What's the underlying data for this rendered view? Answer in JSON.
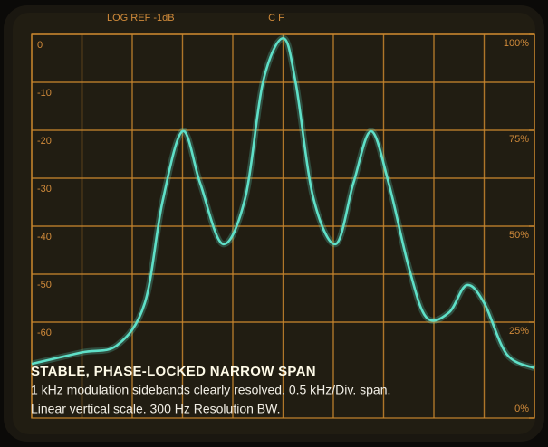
{
  "chart_data": {
    "type": "line",
    "top_labels": {
      "left": "LOG REF -1dB",
      "center": "C F"
    },
    "xlim": [
      0,
      10
    ],
    "xticks": [
      0,
      1,
      2,
      3,
      4,
      5,
      6,
      7,
      8,
      9,
      10
    ],
    "ylim": [
      -80,
      0
    ],
    "yticks": [
      0,
      -10,
      -20,
      -30,
      -40,
      -50,
      -60
    ],
    "y2lim": [
      0,
      100
    ],
    "y2ticks": [
      {
        "value": 100,
        "label": "100%"
      },
      {
        "value": 75,
        "label": "75%"
      },
      {
        "value": 50,
        "label": "50%"
      },
      {
        "value": 25,
        "label": "25%"
      },
      {
        "value": 0,
        "label": "0%"
      }
    ],
    "grid": true,
    "grid_color": "#c8862e",
    "series": [
      {
        "color": "#5fe0c8",
        "x": [
          0,
          1,
          1.7,
          2.25,
          2.6,
          3,
          3.35,
          3.8,
          4.25,
          4.6,
          5,
          5.25,
          5.6,
          6.05,
          6.4,
          6.75,
          7.1,
          7.5,
          7.85,
          8.3,
          8.65,
          9,
          9.45,
          10
        ],
        "values": [
          -68.7,
          -66.3,
          -64.8,
          -56,
          -35,
          -20.2,
          -31,
          -43.7,
          -34,
          -10,
          -0.8,
          -10,
          -34,
          -43.7,
          -31,
          -20.2,
          -31,
          -48.5,
          -59,
          -58,
          -52.3,
          -56,
          -66.7,
          -69.6
        ]
      }
    ],
    "caption": {
      "title": "STABLE, PHASE-LOCKED NARROW SPAN",
      "lines": [
        "1 kHz modulation sidebands clearly resolved. 0.5 kHz/Div. span.",
        "Linear vertical scale. 300 Hz Resolution BW."
      ]
    }
  }
}
